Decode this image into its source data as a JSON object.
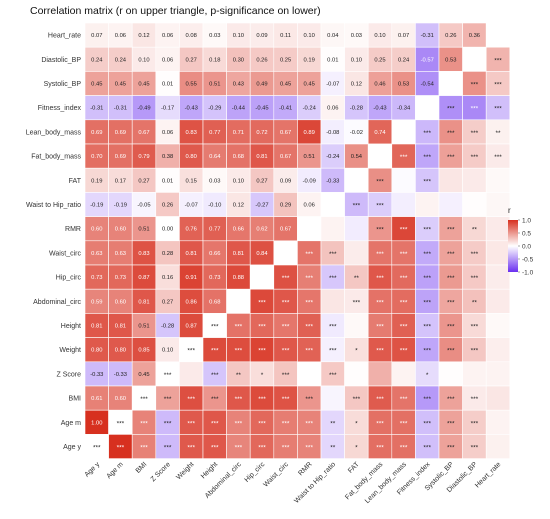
{
  "chart_data": {
    "type": "heatmap",
    "title": "Correlation matrix (r on upper triangle, p-significance on lower)",
    "row_labels": [
      "Heart_rate",
      "Diastolic_BP",
      "Systolic_BP",
      "Fitness_index",
      "Lean_body_mass",
      "Fat_body_mass",
      "FAT",
      "Waist to Hip_ratio",
      "RMR",
      "Waist_circ",
      "Hip_circ",
      "Abdominal_circ",
      "Height",
      "Weight",
      "Z Score",
      "BMI",
      "Age m",
      "Age y"
    ],
    "col_labels": [
      "Age y",
      "Age m",
      "BMI",
      "Z Score",
      "Weight",
      "Height",
      "Abdominal_circ",
      "Hip_circ",
      "Waist_circ",
      "RMR",
      "Waist to Hip_ratio",
      "FAT",
      "Fat_body_mass",
      "Lean_body_mass",
      "Fitness_index",
      "Systolic_BP",
      "Diastolic_BP",
      "Heart_rate"
    ],
    "r_values": [
      [
        0.07,
        0.06,
        0.12,
        0.06,
        0.08,
        0.03,
        0.1,
        0.09,
        0.11,
        0.1,
        0.04,
        0.03,
        0.1,
        0.07,
        -0.31,
        0.26,
        0.36,
        null
      ],
      [
        0.24,
        0.24,
        0.1,
        0.06,
        0.27,
        0.18,
        0.3,
        0.26,
        0.25,
        0.19,
        0.01,
        0.1,
        0.25,
        0.24,
        -0.57,
        0.53,
        null,
        null
      ],
      [
        0.45,
        0.45,
        0.45,
        0.01,
        0.55,
        0.51,
        0.43,
        0.49,
        0.45,
        0.45,
        -0.07,
        0.12,
        0.46,
        0.53,
        -0.54,
        null,
        null,
        null
      ],
      [
        -0.31,
        -0.31,
        -0.49,
        -0.17,
        -0.43,
        -0.29,
        -0.44,
        -0.45,
        -0.41,
        -0.24,
        0.06,
        -0.28,
        -0.43,
        -0.34,
        null,
        null,
        null,
        null
      ],
      [
        0.69,
        0.69,
        0.67,
        0.06,
        0.83,
        0.77,
        0.71,
        0.72,
        0.67,
        0.89,
        -0.08,
        -0.02,
        0.74,
        null,
        null,
        null,
        null,
        null
      ],
      [
        0.7,
        0.69,
        0.79,
        0.38,
        0.8,
        0.64,
        0.68,
        0.81,
        0.67,
        0.51,
        -0.24,
        0.54,
        null,
        null,
        null,
        null,
        null,
        null
      ],
      [
        0.19,
        0.17,
        0.27,
        0.01,
        0.15,
        0.03,
        0.1,
        0.27,
        0.09,
        -0.09,
        -0.33,
        null,
        null,
        null,
        null,
        null,
        null,
        null
      ],
      [
        -0.19,
        -0.19,
        -0.05,
        0.26,
        -0.07,
        -0.1,
        0.12,
        -0.27,
        0.29,
        0.06,
        null,
        null,
        null,
        null,
        null,
        null,
        null,
        null
      ],
      [
        0.6,
        0.6,
        0.51,
        -0.0,
        0.76,
        0.77,
        0.66,
        0.62,
        0.67,
        null,
        null,
        null,
        null,
        null,
        null,
        null,
        null,
        null
      ],
      [
        0.63,
        0.63,
        0.83,
        0.28,
        0.81,
        0.66,
        0.81,
        0.84,
        null,
        null,
        null,
        null,
        null,
        null,
        null,
        null,
        null,
        null
      ],
      [
        0.73,
        0.73,
        0.87,
        0.16,
        0.91,
        0.73,
        0.88,
        null,
        null,
        null,
        null,
        null,
        null,
        null,
        null,
        null,
        null,
        null
      ],
      [
        0.59,
        0.6,
        0.81,
        0.27,
        0.86,
        0.68,
        null,
        null,
        null,
        null,
        null,
        null,
        null,
        null,
        null,
        null,
        null,
        null
      ],
      [
        0.81,
        0.81,
        0.51,
        -0.28,
        0.87,
        null,
        null,
        null,
        null,
        null,
        null,
        null,
        null,
        null,
        null,
        null,
        null,
        null
      ],
      [
        0.8,
        0.8,
        0.85,
        0.1,
        null,
        null,
        null,
        null,
        null,
        null,
        null,
        null,
        null,
        null,
        null,
        null,
        null,
        null
      ],
      [
        -0.33,
        -0.33,
        0.45,
        null,
        null,
        null,
        null,
        null,
        null,
        null,
        null,
        null,
        null,
        null,
        null,
        null,
        null,
        null
      ],
      [
        0.61,
        0.6,
        null,
        null,
        null,
        null,
        null,
        null,
        null,
        null,
        null,
        null,
        null,
        null,
        null,
        null,
        null,
        null
      ],
      [
        1.0,
        null,
        null,
        null,
        null,
        null,
        null,
        null,
        null,
        null,
        null,
        null,
        null,
        null,
        null,
        null,
        null,
        null
      ],
      [
        null,
        null,
        null,
        null,
        null,
        null,
        null,
        null,
        null,
        null,
        null,
        null,
        null,
        null,
        null,
        null,
        null,
        null
      ]
    ],
    "sig_labels": [
      [
        null,
        null,
        null,
        null,
        null,
        null,
        null,
        null,
        null,
        null,
        null,
        null,
        null,
        null,
        null,
        null,
        null,
        null
      ],
      [
        null,
        null,
        null,
        null,
        null,
        null,
        null,
        null,
        null,
        null,
        null,
        null,
        null,
        null,
        null,
        null,
        null,
        "***"
      ],
      [
        null,
        null,
        null,
        null,
        null,
        null,
        null,
        null,
        null,
        null,
        null,
        null,
        null,
        null,
        null,
        null,
        "***",
        "***"
      ],
      [
        null,
        null,
        null,
        null,
        null,
        null,
        null,
        null,
        null,
        null,
        null,
        null,
        null,
        null,
        null,
        "***",
        "***",
        "***"
      ],
      [
        null,
        null,
        null,
        null,
        null,
        null,
        null,
        null,
        null,
        null,
        null,
        null,
        null,
        null,
        "***",
        "***",
        "***",
        "**"
      ],
      [
        null,
        null,
        null,
        null,
        null,
        null,
        null,
        null,
        null,
        null,
        null,
        null,
        null,
        "***",
        "***",
        "***",
        "***",
        "***"
      ],
      [
        null,
        null,
        null,
        null,
        null,
        null,
        null,
        null,
        null,
        null,
        null,
        null,
        "***",
        null,
        "***",
        null,
        null,
        null
      ],
      [
        null,
        null,
        null,
        null,
        null,
        null,
        null,
        null,
        null,
        null,
        null,
        "***",
        "***",
        null,
        null,
        null,
        null,
        null
      ],
      [
        null,
        null,
        null,
        null,
        null,
        null,
        null,
        null,
        null,
        null,
        null,
        null,
        "***",
        "***",
        "***",
        "***",
        "**",
        null
      ],
      [
        null,
        null,
        null,
        null,
        null,
        null,
        null,
        null,
        null,
        "***",
        "***",
        null,
        "***",
        "***",
        "***",
        "***",
        "***",
        null
      ],
      [
        null,
        null,
        null,
        null,
        null,
        null,
        null,
        null,
        "***",
        "***",
        "***",
        "**",
        "***",
        "***",
        "***",
        "***",
        "***",
        null
      ],
      [
        null,
        null,
        null,
        null,
        null,
        null,
        null,
        "***",
        "***",
        "***",
        null,
        "***",
        "***",
        "***",
        "***",
        "***",
        "**",
        null
      ],
      [
        null,
        null,
        null,
        null,
        null,
        "***",
        "***",
        "***",
        "***",
        "***",
        "***",
        null,
        "***",
        "***",
        "***",
        "***",
        "***",
        null
      ],
      [
        null,
        null,
        null,
        null,
        "***",
        "***",
        "***",
        "***",
        "***",
        "***",
        "***",
        "*",
        "***",
        "***",
        "***",
        "***",
        "***",
        null
      ],
      [
        null,
        null,
        null,
        "***",
        null,
        "***",
        "**",
        "*",
        "***",
        null,
        "***",
        null,
        null,
        null,
        "*",
        null,
        null,
        null
      ],
      [
        null,
        null,
        "***",
        "***",
        "***",
        "***",
        "***",
        "***",
        "***",
        "***",
        null,
        "***",
        "***",
        "***",
        "***",
        "***",
        "***",
        null
      ],
      [
        null,
        "***",
        "***",
        "***",
        "***",
        "***",
        "***",
        "***",
        "***",
        "***",
        "**",
        "*",
        "***",
        "***",
        "***",
        "***",
        "***",
        null
      ],
      [
        "***",
        "***",
        "***",
        "***",
        "***",
        "***",
        "***",
        "***",
        "***",
        "***",
        "**",
        "*",
        "***",
        "***",
        "***",
        "***",
        "***",
        null
      ]
    ],
    "legend": {
      "title": "r",
      "ticks": [
        1.0,
        0.5,
        0.0,
        -0.5,
        -1.0
      ],
      "placement": "right"
    },
    "colors": {
      "negative": "#6a2ff0",
      "zero": "#ffffff",
      "positive": "#d7301f"
    },
    "value_range": [
      -1,
      1
    ]
  }
}
